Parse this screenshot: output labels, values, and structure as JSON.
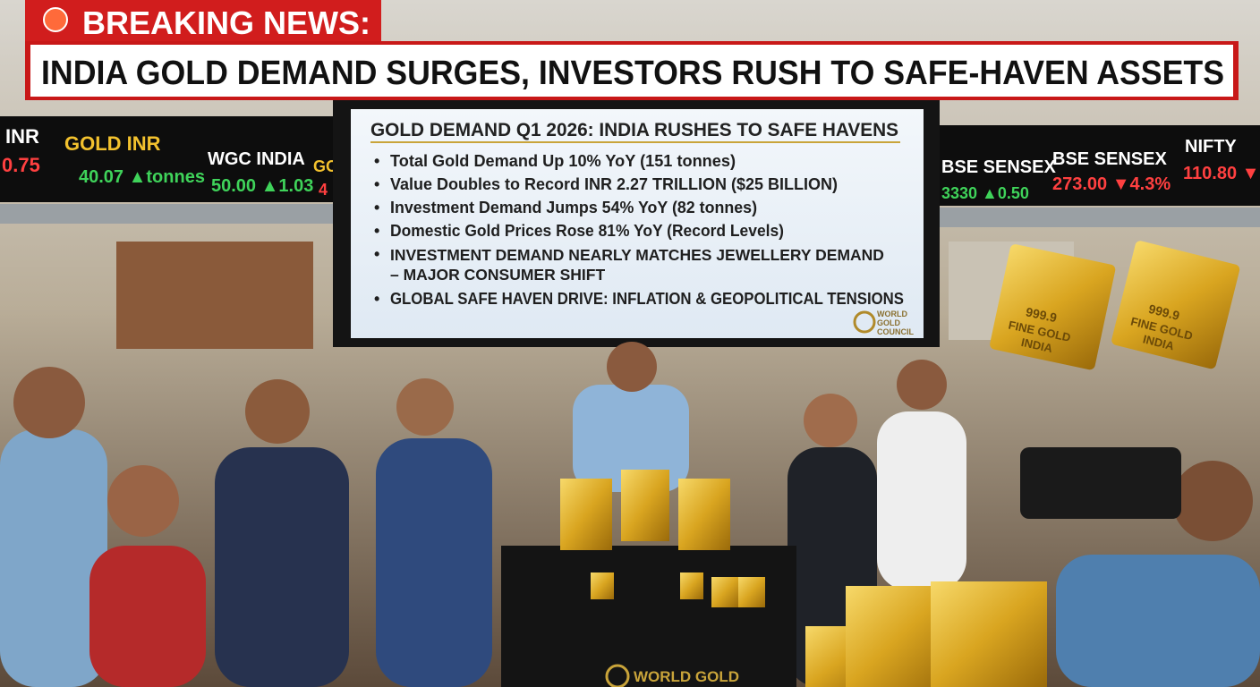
{
  "banner": {
    "label": "BREAKING NEWS:",
    "headline": "INDIA GOLD DEMAND SURGES, INVESTORS RUSH TO SAFE-HAVEN ASSETS"
  },
  "screen": {
    "title": "GOLD DEMAND Q1 2026: INDIA RUSHES TO SAFE HAVENS",
    "bullets": [
      "Total Gold Demand Up 10% YoY (151 tonnes)",
      "Value Doubles to Record INR 2.27 TRILLION ($25 BILLION)",
      "Investment Demand Jumps 54% YoY (82 tonnes)",
      "Domestic Gold Prices Rose 81% YoY (Record Levels)",
      "INVESTMENT DEMAND NEARLY MATCHES JEWELLERY DEMAND – MAJOR CONSUMER SHIFT",
      "GLOBAL SAFE HAVEN DRIVE: INFLATION & GEOPOLITICAL TENSIONS"
    ],
    "logo": "WORLD GOLD COUNCIL"
  },
  "left_ticker": {
    "names": [
      "INR",
      "GOLD INR",
      "WGC INDIA",
      "GO"
    ],
    "quotes": [
      "0.75",
      "40.07 ▲tonnes",
      "50.00 ▲1.03",
      "4"
    ]
  },
  "right_ticker": {
    "names": [
      "BSE SENSEX",
      "BSE SENSEX",
      "NIFTY"
    ],
    "quotes": [
      "3330 ▲0.50",
      "273.00 ▼4.3%",
      "110.80 ▼"
    ]
  },
  "gold_bar": {
    "purity": "999.9",
    "fine": "FINE GOLD",
    "country": "INDIA"
  },
  "table_logo": "WORLD GOLD"
}
